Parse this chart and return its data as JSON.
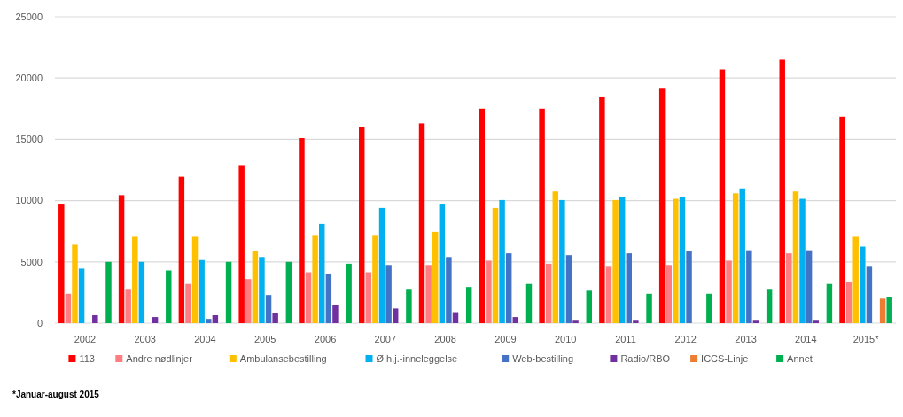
{
  "chart_data": {
    "type": "bar",
    "categories": [
      "2002",
      "2003",
      "2004",
      "2005",
      "2006",
      "2007",
      "2008",
      "2009",
      "2010",
      "2011",
      "2012",
      "2013",
      "2014",
      "2015*"
    ],
    "series": [
      {
        "name": "113",
        "color": "#ff0000",
        "values": [
          9750,
          10450,
          11950,
          12900,
          15100,
          16000,
          16300,
          17500,
          17500,
          18500,
          19200,
          20700,
          21500,
          16850
        ]
      },
      {
        "name": "Andre nødlinjer",
        "color": "#ff7c80",
        "values": [
          2400,
          2800,
          3200,
          3600,
          4150,
          4150,
          4750,
          5100,
          4850,
          4600,
          4750,
          5100,
          5700,
          3350
        ]
      },
      {
        "name": "Ambulansebestilling",
        "color": "#ffc000",
        "values": [
          6400,
          7050,
          7050,
          5850,
          7200,
          7200,
          7450,
          9400,
          10750,
          10050,
          10150,
          10600,
          10750,
          7050
        ]
      },
      {
        "name": "Ø.h.j.-inneleggelse",
        "color": "#00b0f0",
        "values": [
          4450,
          5000,
          5150,
          5400,
          8100,
          9400,
          9750,
          10050,
          10050,
          10300,
          10300,
          11000,
          10150,
          6250
        ]
      },
      {
        "name": "Web-bestilling",
        "color": "#4472c4",
        "values": [
          0,
          0,
          350,
          2300,
          4050,
          4750,
          5400,
          5700,
          5550,
          5700,
          5850,
          5950,
          5950,
          4600
        ]
      },
      {
        "name": "Radio/RBO",
        "color": "#7030a0",
        "values": [
          650,
          500,
          650,
          800,
          1450,
          1200,
          900,
          500,
          200,
          200,
          0,
          200,
          200,
          0
        ]
      },
      {
        "name": "ICCS-Linje",
        "color": "#ed7d31",
        "values": [
          0,
          0,
          0,
          0,
          0,
          0,
          0,
          0,
          0,
          0,
          0,
          0,
          0,
          2000
        ]
      },
      {
        "name": "Annet",
        "color": "#00b050",
        "values": [
          5000,
          4300,
          5000,
          5000,
          4850,
          2800,
          2950,
          3200,
          2650,
          2400,
          2400,
          2800,
          3200,
          2100
        ]
      }
    ],
    "ylim": [
      0,
      25000
    ],
    "yticks": [
      0,
      5000,
      10000,
      15000,
      20000,
      25000
    ],
    "grid": "y",
    "legend": "bottom",
    "annotations": [
      "*Januar-august 2015"
    ]
  }
}
